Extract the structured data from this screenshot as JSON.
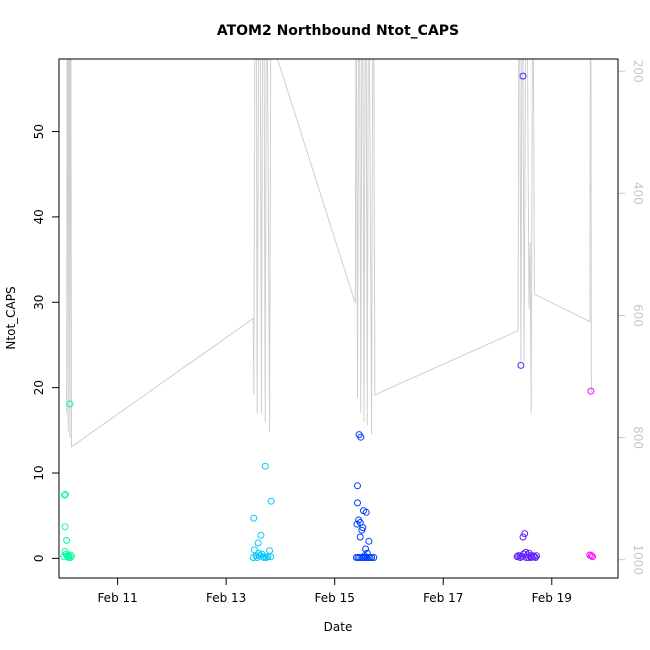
{
  "chart_data": {
    "type": "scatter",
    "title": "ATOM2 Northbound Ntot_CAPS",
    "xlabel": "Date",
    "ylabel": "Ntot_CAPS",
    "x_ticks": [
      {
        "label": "Feb 11",
        "day": 11
      },
      {
        "label": "Feb 13",
        "day": 13
      },
      {
        "label": "Feb 15",
        "day": 15
      },
      {
        "label": "Feb 17",
        "day": 17
      },
      {
        "label": "Feb 19",
        "day": 19
      }
    ],
    "xlim": [
      9.92,
      20.22
    ],
    "ylim": [
      -2.3,
      58.5
    ],
    "y_ticks": [
      0,
      10,
      20,
      30,
      40,
      50
    ],
    "secondary_axis": {
      "ticks": [
        200,
        400,
        600,
        800,
        1000
      ],
      "range": [
        1030,
        180
      ],
      "reversed": true,
      "color": "#c8c8c8"
    },
    "secondary_line": {
      "color": "#cfcfcf",
      "points": [
        [
          10.06,
          760
        ],
        [
          10.07,
          150
        ],
        [
          10.08,
          150
        ],
        [
          10.09,
          790
        ],
        [
          10.1,
          160
        ],
        [
          10.11,
          150
        ],
        [
          10.12,
          800
        ],
        [
          10.13,
          160
        ],
        [
          10.14,
          150
        ],
        [
          10.15,
          815
        ],
        [
          13.5,
          605
        ],
        [
          13.51,
          730
        ],
        [
          13.53,
          150
        ],
        [
          13.56,
          150
        ],
        [
          13.57,
          760
        ],
        [
          13.6,
          150
        ],
        [
          13.63,
          150
        ],
        [
          13.65,
          760
        ],
        [
          13.67,
          150
        ],
        [
          13.7,
          150
        ],
        [
          13.72,
          775
        ],
        [
          13.74,
          150
        ],
        [
          13.76,
          150
        ],
        [
          13.8,
          790
        ],
        [
          13.82,
          150
        ],
        [
          13.84,
          150
        ],
        [
          15.38,
          580
        ],
        [
          15.39,
          150
        ],
        [
          15.4,
          150
        ],
        [
          15.42,
          735
        ],
        [
          15.44,
          150
        ],
        [
          15.46,
          150
        ],
        [
          15.48,
          760
        ],
        [
          15.5,
          150
        ],
        [
          15.52,
          150
        ],
        [
          15.54,
          775
        ],
        [
          15.56,
          150
        ],
        [
          15.58,
          150
        ],
        [
          15.6,
          780
        ],
        [
          15.62,
          150
        ],
        [
          15.64,
          150
        ],
        [
          15.68,
          795
        ],
        [
          15.7,
          150
        ],
        [
          15.72,
          150
        ],
        [
          15.74,
          730
        ],
        [
          18.38,
          625
        ],
        [
          18.39,
          150
        ],
        [
          18.41,
          150
        ],
        [
          18.43,
          675
        ],
        [
          18.45,
          150
        ],
        [
          18.47,
          150
        ],
        [
          18.49,
          675
        ],
        [
          18.52,
          150
        ],
        [
          18.55,
          150
        ],
        [
          18.58,
          590
        ],
        [
          18.6,
          480
        ],
        [
          18.62,
          760
        ],
        [
          18.64,
          150
        ],
        [
          18.66,
          150
        ],
        [
          18.68,
          565
        ],
        [
          19.7,
          610
        ],
        [
          19.71,
          150
        ],
        [
          19.72,
          150
        ],
        [
          19.73,
          725
        ]
      ]
    },
    "series": [
      {
        "color": "#00ff9f",
        "points": [
          [
            10.02,
            7.4
          ],
          [
            10.04,
            7.5
          ],
          [
            10.03,
            3.7
          ],
          [
            10.06,
            2.1
          ],
          [
            10.03,
            0.8
          ],
          [
            10.05,
            0.5
          ],
          [
            10.07,
            0.3
          ],
          [
            10.09,
            0.2
          ],
          [
            10.11,
            0.4
          ],
          [
            10.13,
            0.1
          ],
          [
            10.15,
            0.3
          ],
          [
            10.01,
            0.2
          ],
          [
            10.1,
            0.1
          ],
          [
            10.12,
            18.1
          ]
        ]
      },
      {
        "color": "#00c8ff",
        "points": [
          [
            13.51,
            4.7
          ],
          [
            13.72,
            10.8
          ],
          [
            13.83,
            6.7
          ],
          [
            13.64,
            2.7
          ],
          [
            13.59,
            1.8
          ],
          [
            13.52,
            1.0
          ],
          [
            13.6,
            0.6
          ],
          [
            13.66,
            0.5
          ],
          [
            13.8,
            0.9
          ],
          [
            13.55,
            0.3
          ],
          [
            13.68,
            0.2
          ],
          [
            13.74,
            0.1
          ],
          [
            13.77,
            0.2
          ],
          [
            13.57,
            0.1
          ],
          [
            13.62,
            0.3
          ],
          [
            13.7,
            0.1
          ],
          [
            13.82,
            0.2
          ],
          [
            13.5,
            0.1
          ]
        ]
      },
      {
        "color": "#0040ff",
        "points": [
          [
            15.45,
            14.5
          ],
          [
            15.48,
            14.2
          ],
          [
            15.42,
            8.5
          ],
          [
            15.42,
            6.5
          ],
          [
            15.58,
            5.4
          ],
          [
            15.53,
            5.6
          ],
          [
            15.44,
            4.5
          ],
          [
            15.47,
            4.2
          ],
          [
            15.41,
            4.0
          ],
          [
            15.52,
            3.6
          ],
          [
            15.5,
            3.3
          ],
          [
            15.47,
            2.5
          ],
          [
            15.63,
            2.0
          ],
          [
            15.57,
            1.1
          ],
          [
            15.6,
            0.6
          ],
          [
            15.55,
            0.3
          ],
          [
            15.4,
            0.1
          ],
          [
            15.43,
            0.1
          ],
          [
            15.46,
            0.1
          ],
          [
            15.5,
            0.1
          ],
          [
            15.53,
            0.1
          ],
          [
            15.56,
            0.1
          ],
          [
            15.59,
            0.1
          ],
          [
            15.62,
            0.1
          ],
          [
            15.65,
            0.1
          ],
          [
            15.68,
            0.1
          ],
          [
            15.72,
            0.1
          ]
        ]
      },
      {
        "color": "#6020ff",
        "points": [
          [
            18.47,
            56.5
          ],
          [
            18.43,
            22.6
          ],
          [
            18.5,
            2.9
          ],
          [
            18.47,
            2.5
          ],
          [
            18.52,
            0.7
          ],
          [
            18.48,
            0.5
          ],
          [
            18.55,
            0.4
          ],
          [
            18.58,
            0.6
          ],
          [
            18.41,
            0.3
          ],
          [
            18.38,
            0.3
          ],
          [
            18.45,
            0.2
          ],
          [
            18.6,
            0.3
          ],
          [
            18.63,
            0.2
          ],
          [
            18.66,
            0.3
          ],
          [
            18.7,
            0.1
          ],
          [
            18.36,
            0.2
          ],
          [
            18.53,
            0.1
          ],
          [
            18.57,
            0.1
          ],
          [
            18.62,
            0.1
          ],
          [
            18.68,
            0.2
          ],
          [
            18.72,
            0.3
          ],
          [
            18.42,
            0.1
          ]
        ]
      },
      {
        "color": "#ff00ff",
        "points": [
          [
            19.72,
            19.6
          ],
          [
            19.7,
            0.4
          ],
          [
            19.73,
            0.3
          ],
          [
            19.75,
            0.2
          ]
        ]
      }
    ]
  }
}
